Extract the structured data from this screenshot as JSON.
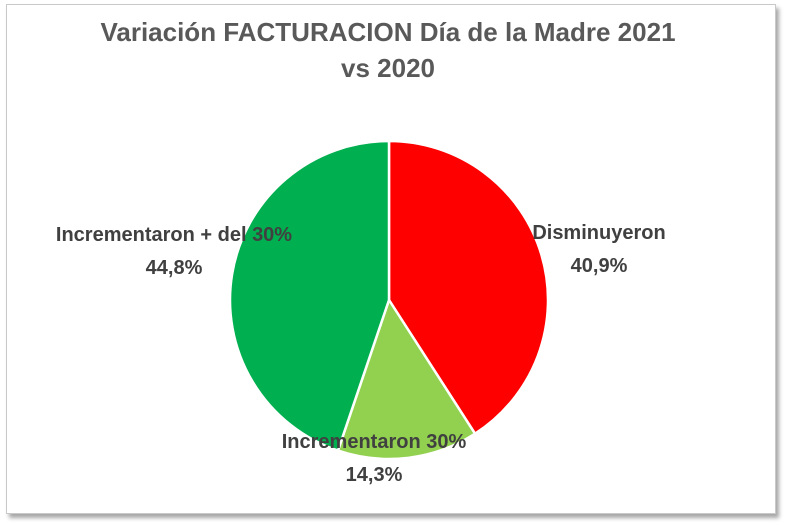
{
  "chart_data": {
    "type": "pie",
    "title_line1": "Variación FACTURACION Día de la Madre 2021",
    "title_line2": "vs 2020",
    "slices": [
      {
        "label": "Disminuyeron",
        "value_label": "40,9%",
        "value": 40.9,
        "color": "#ff0000"
      },
      {
        "label": "Incrementaron 30%",
        "value_label": "14,3%",
        "value": 14.3,
        "color": "#92d050"
      },
      {
        "label": "Incrementaron + del 30%",
        "value_label": "44,8%",
        "value": 44.8,
        "color": "#00b050"
      }
    ]
  }
}
